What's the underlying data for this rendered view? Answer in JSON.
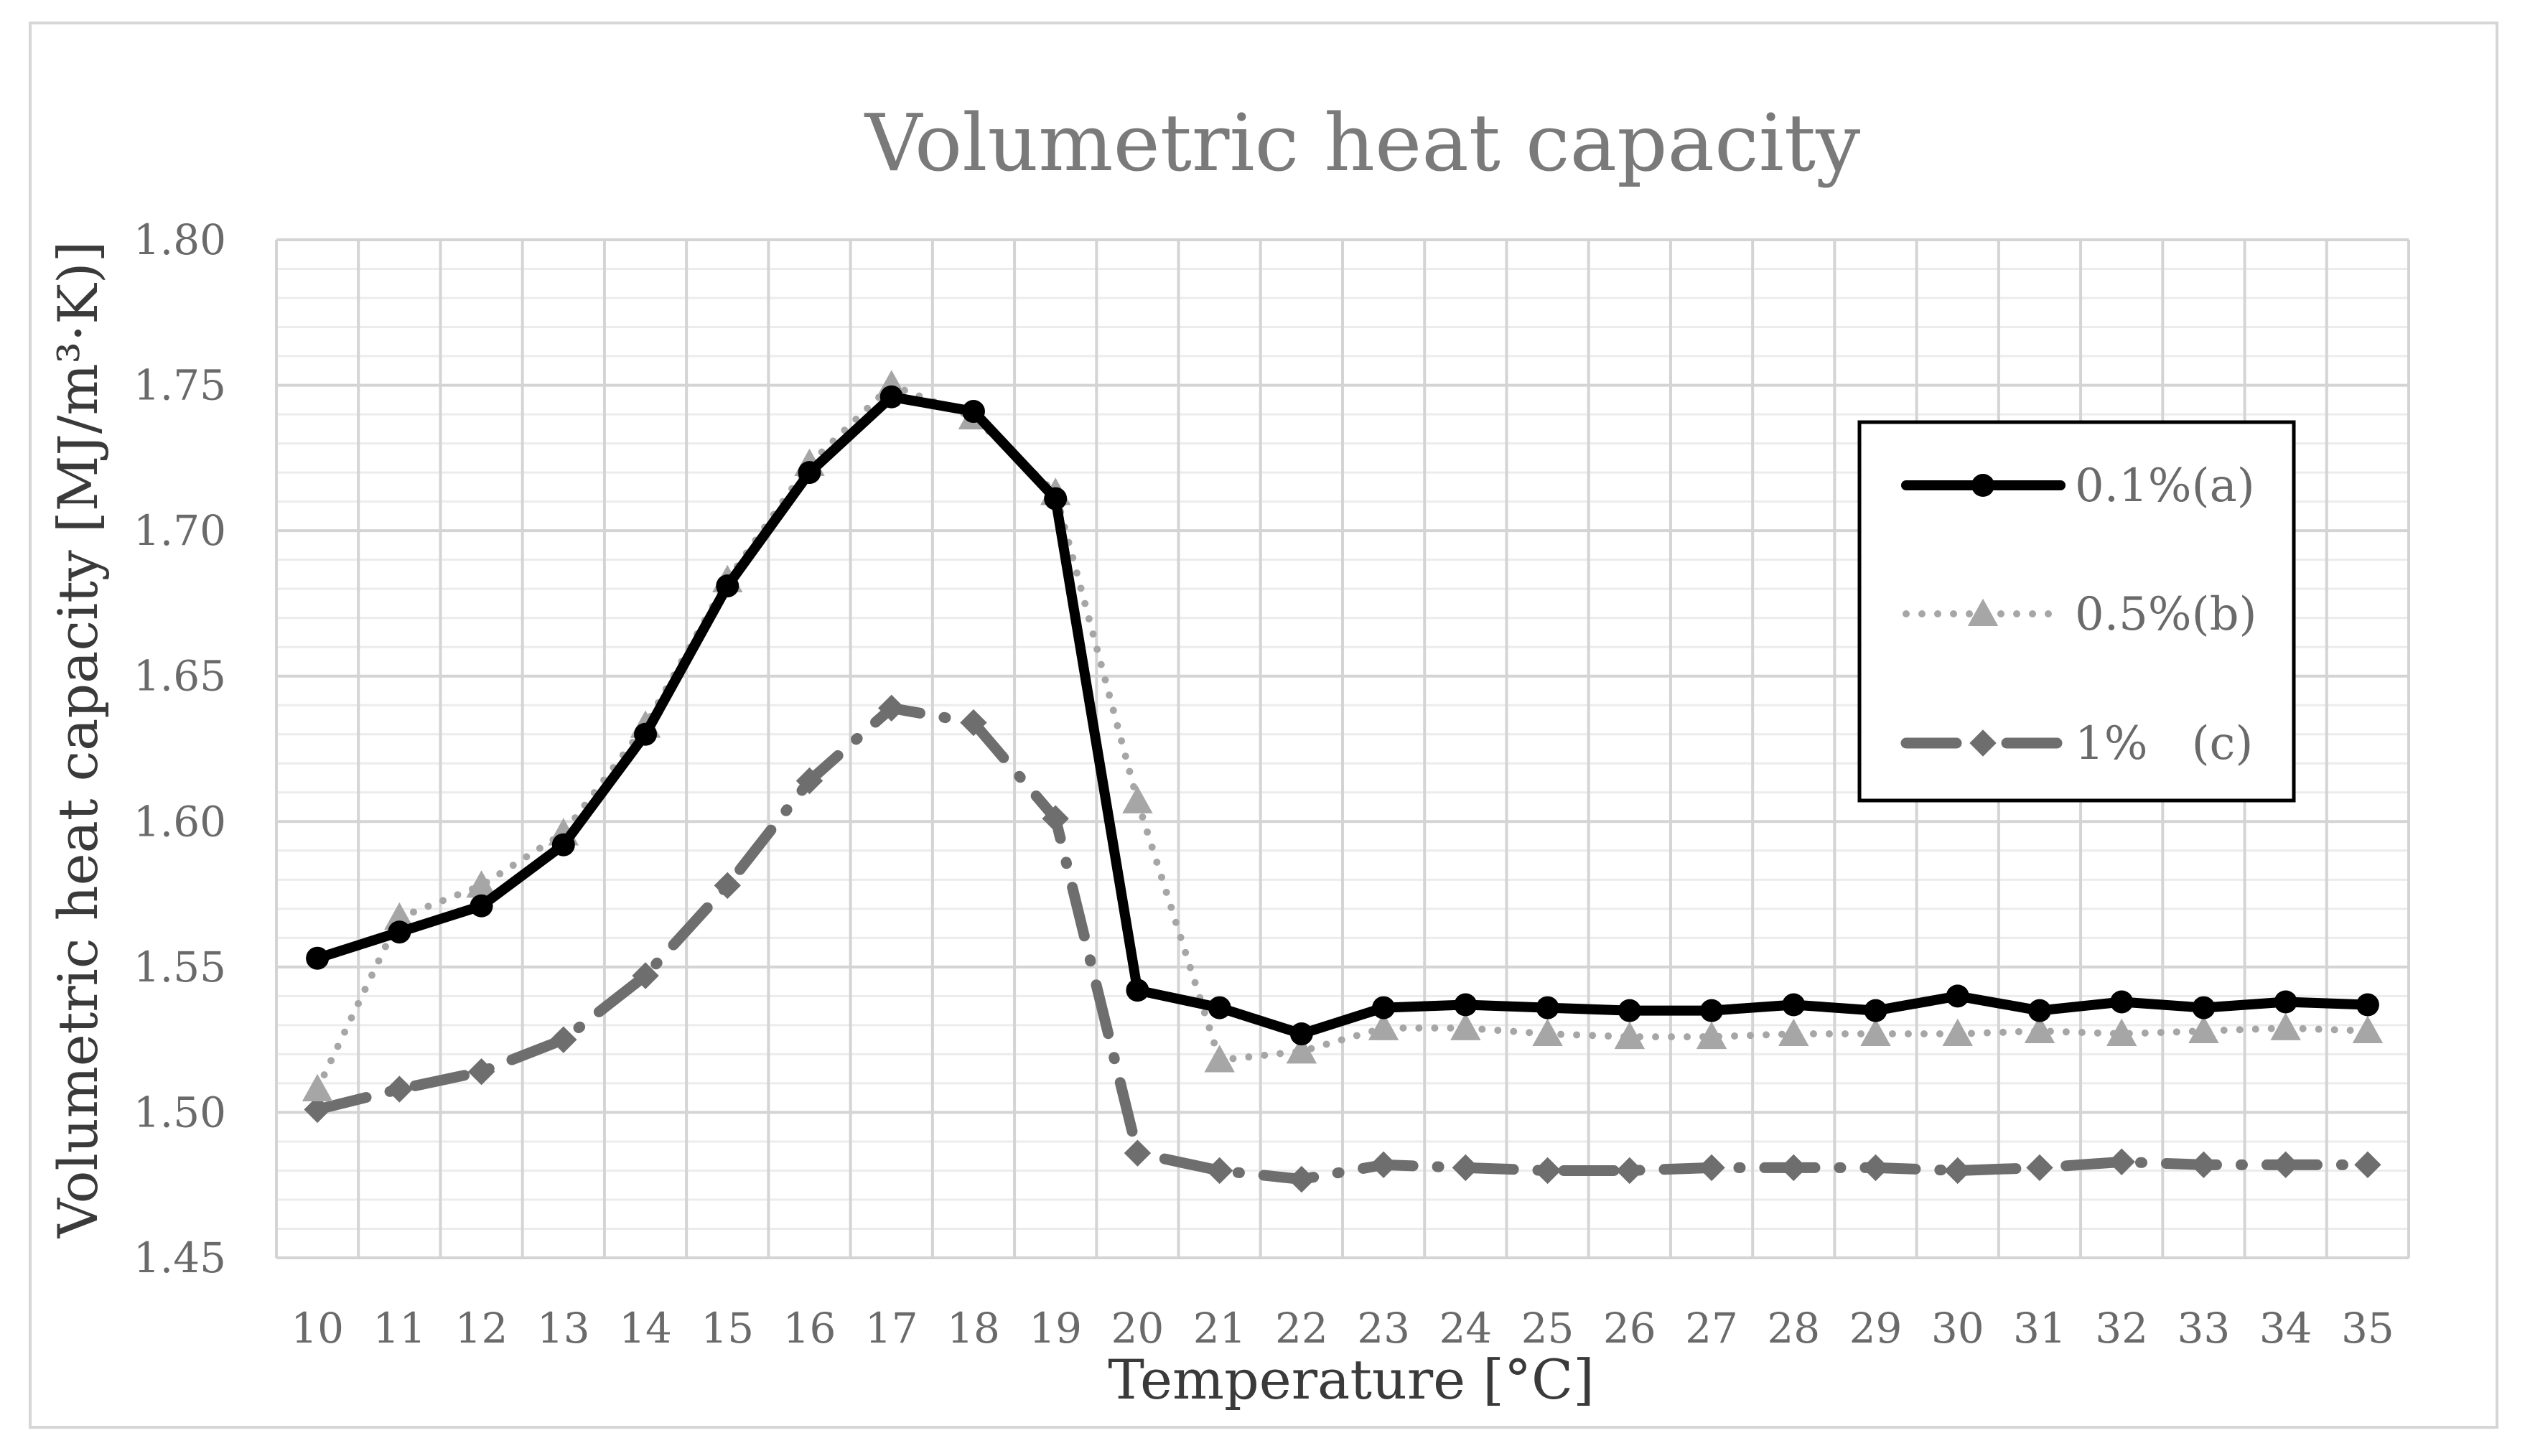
{
  "chart_data": {
    "type": "line",
    "title": "Volumetric heat capacity",
    "xlabel": "Temperature [°C]",
    "ylabel": "Volumetric heat capacity [MJ/m³·K)]",
    "ylim": [
      1.45,
      1.8
    ],
    "ytick_step": 0.05,
    "minor_gridlines_per_major": 5,
    "yticks": [
      "1.45",
      "1.50",
      "1.55",
      "1.60",
      "1.65",
      "1.70",
      "1.75",
      "1.80"
    ],
    "categories": [
      "10",
      "11",
      "12",
      "13",
      "14",
      "15",
      "16",
      "17",
      "18",
      "19",
      "20",
      "21",
      "22",
      "23",
      "24",
      "25",
      "26",
      "27",
      "28",
      "29",
      "30",
      "31",
      "32",
      "33",
      "34",
      "35"
    ],
    "legend_position": "right",
    "series": [
      {
        "name": "0.1%(a)",
        "style": "solid",
        "marker": "circle",
        "color": "#000000",
        "values": [
          1.553,
          1.562,
          1.571,
          1.592,
          1.63,
          1.681,
          1.72,
          1.746,
          1.741,
          1.711,
          1.542,
          1.536,
          1.527,
          1.536,
          1.537,
          1.536,
          1.535,
          1.535,
          1.537,
          1.535,
          1.54,
          1.535,
          1.538,
          1.536,
          1.538,
          1.537
        ]
      },
      {
        "name": "0.5%(b)",
        "style": "dotted",
        "marker": "triangle",
        "color": "#a6a6a6",
        "values": [
          1.508,
          1.567,
          1.578,
          1.596,
          1.633,
          1.683,
          1.723,
          1.75,
          1.739,
          1.713,
          1.607,
          1.518,
          1.521,
          1.529,
          1.529,
          1.527,
          1.526,
          1.526,
          1.527,
          1.527,
          1.527,
          1.528,
          1.527,
          1.528,
          1.529,
          1.528
        ]
      },
      {
        "name": "1%   (c)",
        "style": "dash-dot",
        "marker": "diamond",
        "color": "#6e6e6e",
        "values": [
          1.501,
          1.508,
          1.514,
          1.525,
          1.547,
          1.578,
          1.614,
          1.639,
          1.634,
          1.601,
          1.486,
          1.48,
          1.477,
          1.482,
          1.481,
          1.48,
          1.48,
          1.481,
          1.481,
          1.481,
          1.48,
          1.481,
          1.483,
          1.482,
          1.482,
          1.482
        ]
      }
    ]
  }
}
